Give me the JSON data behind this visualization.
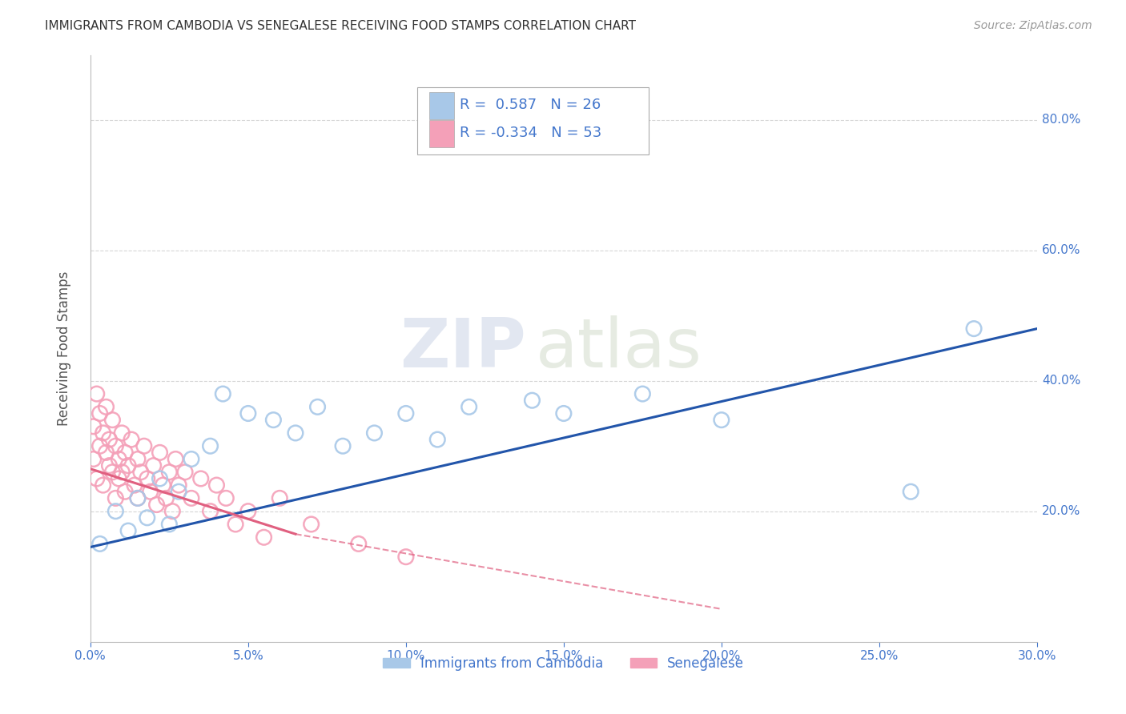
{
  "title": "IMMIGRANTS FROM CAMBODIA VS SENEGALESE RECEIVING FOOD STAMPS CORRELATION CHART",
  "source": "Source: ZipAtlas.com",
  "ylabel": "Receiving Food Stamps",
  "xlim": [
    0.0,
    0.3
  ],
  "ylim": [
    0.0,
    0.9
  ],
  "ytick_vals": [
    0.2,
    0.4,
    0.6,
    0.8
  ],
  "ytick_labels": [
    "20.0%",
    "40.0%",
    "60.0%",
    "80.0%"
  ],
  "xtick_vals": [
    0.0,
    0.05,
    0.1,
    0.15,
    0.2,
    0.25,
    0.3
  ],
  "xtick_labels": [
    "0.0%",
    "5.0%",
    "10.0%",
    "15.0%",
    "20.0%",
    "25.0%",
    "30.0%"
  ],
  "legend1_label": "Immigrants from Cambodia",
  "legend2_label": "Senegalese",
  "r1": 0.587,
  "n1": 26,
  "r2": -0.334,
  "n2": 53,
  "color1": "#a8c8e8",
  "color2": "#f4a0b8",
  "line1_color": "#2255aa",
  "line2_color": "#e06080",
  "scatter1_x": [
    0.003,
    0.008,
    0.012,
    0.015,
    0.018,
    0.022,
    0.025,
    0.028,
    0.032,
    0.038,
    0.042,
    0.05,
    0.058,
    0.065,
    0.072,
    0.08,
    0.09,
    0.1,
    0.11,
    0.12,
    0.14,
    0.15,
    0.175,
    0.2,
    0.26,
    0.28
  ],
  "scatter1_y": [
    0.15,
    0.2,
    0.17,
    0.22,
    0.19,
    0.25,
    0.18,
    0.23,
    0.28,
    0.3,
    0.38,
    0.35,
    0.34,
    0.32,
    0.36,
    0.3,
    0.32,
    0.35,
    0.31,
    0.36,
    0.37,
    0.35,
    0.38,
    0.34,
    0.23,
    0.48
  ],
  "scatter2_x": [
    0.001,
    0.001,
    0.002,
    0.002,
    0.003,
    0.003,
    0.004,
    0.004,
    0.005,
    0.005,
    0.006,
    0.006,
    0.007,
    0.007,
    0.008,
    0.008,
    0.009,
    0.009,
    0.01,
    0.01,
    0.011,
    0.011,
    0.012,
    0.013,
    0.014,
    0.015,
    0.015,
    0.016,
    0.017,
    0.018,
    0.019,
    0.02,
    0.021,
    0.022,
    0.023,
    0.024,
    0.025,
    0.026,
    0.027,
    0.028,
    0.03,
    0.032,
    0.035,
    0.038,
    0.04,
    0.043,
    0.046,
    0.05,
    0.055,
    0.06,
    0.07,
    0.085,
    0.1
  ],
  "scatter2_y": [
    0.28,
    0.33,
    0.25,
    0.38,
    0.3,
    0.35,
    0.24,
    0.32,
    0.29,
    0.36,
    0.27,
    0.31,
    0.26,
    0.34,
    0.22,
    0.3,
    0.25,
    0.28,
    0.32,
    0.26,
    0.29,
    0.23,
    0.27,
    0.31,
    0.24,
    0.28,
    0.22,
    0.26,
    0.3,
    0.25,
    0.23,
    0.27,
    0.21,
    0.29,
    0.24,
    0.22,
    0.26,
    0.2,
    0.28,
    0.24,
    0.26,
    0.22,
    0.25,
    0.2,
    0.24,
    0.22,
    0.18,
    0.2,
    0.16,
    0.22,
    0.18,
    0.15,
    0.13
  ],
  "line1_x0": 0.0,
  "line1_y0": 0.145,
  "line1_x1": 0.3,
  "line1_y1": 0.48,
  "line2_solid_x0": 0.0,
  "line2_solid_y0": 0.265,
  "line2_solid_x1": 0.065,
  "line2_solid_y1": 0.165,
  "line2_dash_x0": 0.065,
  "line2_dash_y0": 0.165,
  "line2_dash_x1": 0.2,
  "line2_dash_y1": 0.05,
  "watermark_zip": "ZIP",
  "watermark_atlas": "atlas",
  "background_color": "#ffffff",
  "grid_color": "#cccccc",
  "title_color": "#333333",
  "axis_label_color": "#555555",
  "tick_label_color": "#4477cc"
}
